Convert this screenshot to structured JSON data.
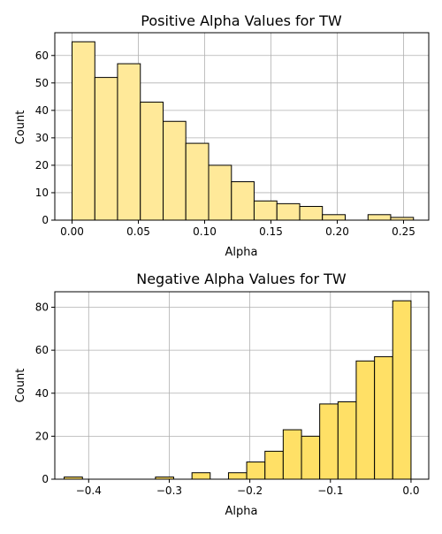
{
  "chart_data": [
    {
      "type": "bar",
      "title": "Positive Alpha Values for TW",
      "xlabel": "Alpha",
      "ylabel": "Count",
      "bar_color": "#ffe999",
      "edge_color": "#000000",
      "grid": true,
      "xlim": [
        -0.013,
        0.269
      ],
      "ylim": [
        0,
        68.3
      ],
      "xticks": [
        0.0,
        0.05,
        0.1,
        0.15,
        0.2,
        0.25
      ],
      "xtick_labels": [
        "0.00",
        "0.05",
        "0.10",
        "0.15",
        "0.20",
        "0.25"
      ],
      "yticks": [
        0,
        10,
        20,
        30,
        40,
        50,
        60
      ],
      "ytick_labels": [
        "0",
        "10",
        "20",
        "30",
        "40",
        "50",
        "60"
      ],
      "bins": [
        {
          "x0": 0.0,
          "x1": 0.0172,
          "count": 65
        },
        {
          "x0": 0.0172,
          "x1": 0.0343,
          "count": 52
        },
        {
          "x0": 0.0343,
          "x1": 0.0515,
          "count": 57
        },
        {
          "x0": 0.0515,
          "x1": 0.0687,
          "count": 43
        },
        {
          "x0": 0.0687,
          "x1": 0.0858,
          "count": 36
        },
        {
          "x0": 0.0858,
          "x1": 0.103,
          "count": 28
        },
        {
          "x0": 0.103,
          "x1": 0.1202,
          "count": 20
        },
        {
          "x0": 0.1202,
          "x1": 0.1373,
          "count": 14
        },
        {
          "x0": 0.1373,
          "x1": 0.1545,
          "count": 7
        },
        {
          "x0": 0.1545,
          "x1": 0.1717,
          "count": 6
        },
        {
          "x0": 0.1717,
          "x1": 0.1888,
          "count": 5
        },
        {
          "x0": 0.1888,
          "x1": 0.206,
          "count": 2
        },
        {
          "x0": 0.206,
          "x1": 0.2232,
          "count": 0
        },
        {
          "x0": 0.2232,
          "x1": 0.2403,
          "count": 2
        },
        {
          "x0": 0.2403,
          "x1": 0.2575,
          "count": 1
        }
      ]
    },
    {
      "type": "bar",
      "title": "Negative Alpha Values for TW",
      "xlabel": "Alpha",
      "ylabel": "Count",
      "bar_color": "#ffe066",
      "edge_color": "#000000",
      "grid": true,
      "xlim": [
        -0.442,
        0.022
      ],
      "ylim": [
        0,
        87.2
      ],
      "xticks": [
        -0.4,
        -0.3,
        -0.2,
        -0.1,
        0.0
      ],
      "xtick_labels": [
        "−0.4",
        "−0.3",
        "−0.2",
        "−0.1",
        "0.0"
      ],
      "yticks": [
        0,
        20,
        40,
        60,
        80
      ],
      "ytick_labels": [
        "0",
        "20",
        "40",
        "60",
        "80"
      ],
      "bins": [
        {
          "x0": -0.4304,
          "x1": -0.4077,
          "count": 1
        },
        {
          "x0": -0.4077,
          "x1": -0.3851,
          "count": 0
        },
        {
          "x0": -0.3851,
          "x1": -0.3624,
          "count": 0
        },
        {
          "x0": -0.3624,
          "x1": -0.3398,
          "count": 0
        },
        {
          "x0": -0.3398,
          "x1": -0.3171,
          "count": 0
        },
        {
          "x0": -0.3171,
          "x1": -0.2945,
          "count": 1
        },
        {
          "x0": -0.2945,
          "x1": -0.2718,
          "count": 0
        },
        {
          "x0": -0.2718,
          "x1": -0.2492,
          "count": 3
        },
        {
          "x0": -0.2492,
          "x1": -0.2265,
          "count": 0
        },
        {
          "x0": -0.2265,
          "x1": -0.2039,
          "count": 3
        },
        {
          "x0": -0.2039,
          "x1": -0.1812,
          "count": 8
        },
        {
          "x0": -0.1812,
          "x1": -0.1586,
          "count": 13
        },
        {
          "x0": -0.1586,
          "x1": -0.1359,
          "count": 23
        },
        {
          "x0": -0.1359,
          "x1": -0.1133,
          "count": 20
        },
        {
          "x0": -0.1133,
          "x1": -0.0906,
          "count": 35
        },
        {
          "x0": -0.0906,
          "x1": -0.068,
          "count": 36
        },
        {
          "x0": -0.068,
          "x1": -0.0453,
          "count": 55
        },
        {
          "x0": -0.0453,
          "x1": -0.0227,
          "count": 57
        },
        {
          "x0": -0.0227,
          "x1": 0.0,
          "count": 83
        }
      ]
    }
  ]
}
